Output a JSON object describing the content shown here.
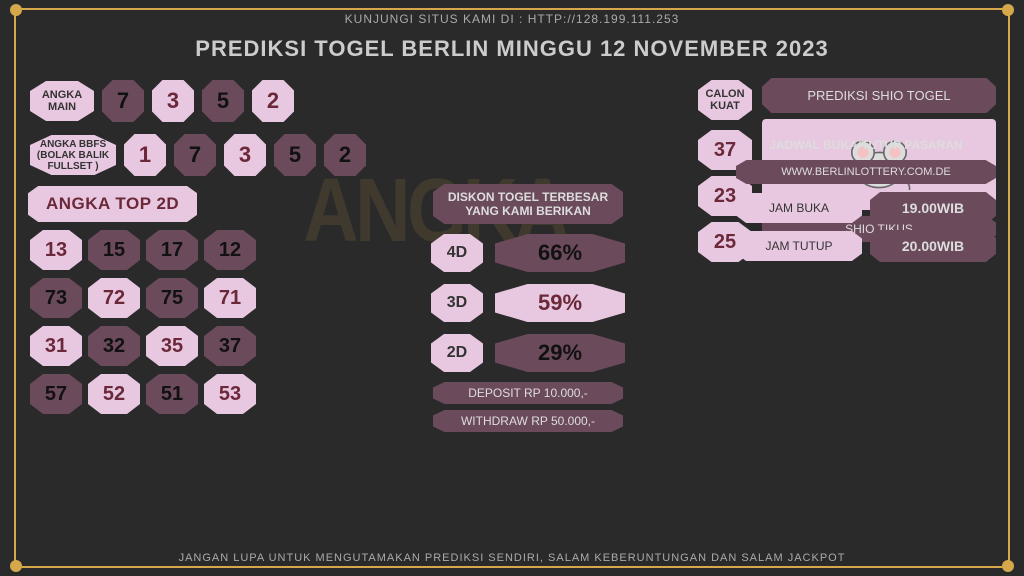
{
  "top_banner": "KUNJUNGI SITUS KAMI DI : HTTP://128.199.111.253",
  "title": "PREDIKSI TOGEL BERLIN MINGGU 12 NOVEMBER 2023",
  "bottom_banner": "JANGAN LUPA UNTUK MENGUTAMAKAN PREDIKSI SENDIRI, SALAM KEBERUNTUNGAN DAN SALAM JACKPOT",
  "watermark": "ANGKA",
  "colors": {
    "pink": "#e8c8e0",
    "dark": "#6b4a5c",
    "text_dark": "#6b2838",
    "accent": "#d4a84b",
    "bg": "#2a2a2a"
  },
  "angka_main": {
    "label": "ANGKA MAIN",
    "values": [
      "7",
      "3",
      "5",
      "2"
    ],
    "styles": [
      "dark",
      "pink",
      "dark",
      "pink"
    ]
  },
  "angka_bbfs": {
    "label": "ANGKA BBFS (BOLAK BALIK FULLSET )",
    "values": [
      "1",
      "7",
      "3",
      "5",
      "2"
    ],
    "styles": [
      "pink",
      "dark",
      "pink",
      "dark",
      "dark"
    ]
  },
  "top2d": {
    "label": "ANGKA TOP 2D",
    "grid": [
      [
        "13",
        "15",
        "17",
        "12"
      ],
      [
        "73",
        "72",
        "75",
        "71"
      ],
      [
        "31",
        "32",
        "35",
        "37"
      ],
      [
        "57",
        "52",
        "51",
        "53"
      ]
    ],
    "styles": [
      [
        "pink",
        "dark",
        "dark",
        "dark"
      ],
      [
        "dark",
        "pink",
        "dark",
        "pink"
      ],
      [
        "pink",
        "dark",
        "pink",
        "dark"
      ],
      [
        "dark",
        "pink",
        "dark",
        "pink"
      ]
    ]
  },
  "diskon": {
    "header": "DISKON TOGEL TERBESAR YANG KAMI BERIKAN",
    "rows": [
      {
        "label": "4D",
        "value": "66%",
        "style": "dark"
      },
      {
        "label": "3D",
        "value": "59%",
        "style": "pink"
      },
      {
        "label": "2D",
        "value": "29%",
        "style": "dark"
      }
    ],
    "deposit": "DEPOSIT RP 10.000,-",
    "withdraw": "WITHDRAW RP 50.000,-"
  },
  "calon_kuat": {
    "label": "CALON KUAT",
    "values": [
      "37",
      "23",
      "25"
    ]
  },
  "shio": {
    "header": "PREDIKSI SHIO TOGEL",
    "name": "SHIO TIKUS"
  },
  "jadwal": {
    "header": "JADWAL BUKA/TUTUP PASARAN",
    "site": "WWW.BERLINLOTTERY.COM.DE",
    "buka_label": "JAM BUKA",
    "buka_val": "19.00WIB",
    "tutup_label": "JAM TUTUP",
    "tutup_val": "20.00WIB"
  }
}
